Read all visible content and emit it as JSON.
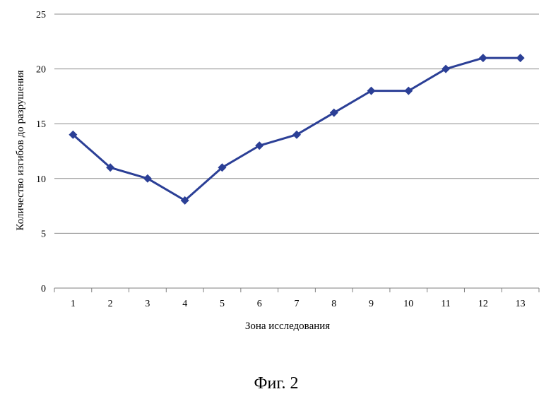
{
  "chart_data": {
    "type": "line",
    "categories": [
      "1",
      "2",
      "3",
      "4",
      "5",
      "6",
      "7",
      "8",
      "9",
      "10",
      "11",
      "12",
      "13"
    ],
    "series": [
      {
        "values": [
          14,
          11,
          10,
          8,
          11,
          13,
          14,
          16,
          18,
          18,
          20,
          21,
          21
        ]
      }
    ],
    "xlabel": "Зона исследования",
    "ylabel": "Количество изгибов до разрушения",
    "ylim": [
      0,
      25
    ],
    "yticks": [
      0,
      5,
      10,
      15,
      20,
      25
    ],
    "grid": true,
    "marker": "diamond",
    "color": "#2b3f96"
  },
  "caption": "Фиг. 2"
}
